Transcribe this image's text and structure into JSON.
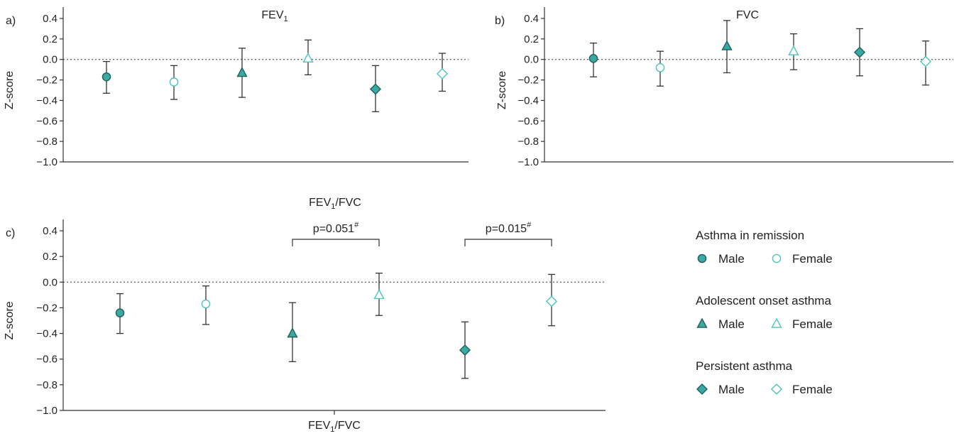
{
  "colors": {
    "male_fill": "#3aa8a3",
    "female_stroke": "#4cc3bd",
    "male_stroke": "#1f5f5c"
  },
  "legend": {
    "groups": [
      {
        "title": "Asthma in remission",
        "marker": "circle",
        "male": "Male",
        "female": "Female"
      },
      {
        "title": "Adolescent onset asthma",
        "marker": "triangle",
        "male": "Male",
        "female": "Female"
      },
      {
        "title": "Persistent asthma",
        "marker": "diamond",
        "male": "Male",
        "female": "Female"
      }
    ]
  },
  "chart_data": [
    {
      "type": "scatter",
      "panel": "a)",
      "title": "FEV",
      "title_sub": "1",
      "ylabel": "Z-score",
      "ylim": [
        -1.0,
        0.4
      ],
      "yticks": [
        "0.4",
        "0.2",
        "0.0",
        "−0.2",
        "−0.4",
        "−0.6",
        "−0.8",
        "−1.0"
      ],
      "reference_line": 0.0,
      "points": [
        {
          "group": "Asthma in remission",
          "sex": "Male",
          "marker": "circle",
          "y": -0.17,
          "low": -0.33,
          "high": -0.02
        },
        {
          "group": "Asthma in remission",
          "sex": "Female",
          "marker": "circle",
          "y": -0.22,
          "low": -0.39,
          "high": -0.06
        },
        {
          "group": "Adolescent onset asthma",
          "sex": "Male",
          "marker": "triangle",
          "y": -0.13,
          "low": -0.37,
          "high": 0.11
        },
        {
          "group": "Adolescent onset asthma",
          "sex": "Female",
          "marker": "triangle",
          "y": 0.01,
          "low": -0.15,
          "high": 0.19
        },
        {
          "group": "Persistent asthma",
          "sex": "Male",
          "marker": "diamond",
          "y": -0.29,
          "low": -0.51,
          "high": -0.06
        },
        {
          "group": "Persistent asthma",
          "sex": "Female",
          "marker": "diamond",
          "y": -0.14,
          "low": -0.31,
          "high": 0.06
        }
      ]
    },
    {
      "type": "scatter",
      "panel": "b)",
      "title": "FVC",
      "title_sub": "",
      "ylabel": "Z-score",
      "ylim": [
        -1.0,
        0.4
      ],
      "yticks": [
        "0.4",
        "0.2",
        "0.0",
        "−0.2",
        "−0.4",
        "−0.6",
        "−0.8",
        "−1.0"
      ],
      "reference_line": 0.0,
      "points": [
        {
          "group": "Asthma in remission",
          "sex": "Male",
          "marker": "circle",
          "y": 0.01,
          "low": -0.17,
          "high": 0.16
        },
        {
          "group": "Asthma in remission",
          "sex": "Female",
          "marker": "circle",
          "y": -0.08,
          "low": -0.26,
          "high": 0.08
        },
        {
          "group": "Adolescent onset asthma",
          "sex": "Male",
          "marker": "triangle",
          "y": 0.13,
          "low": -0.13,
          "high": 0.38
        },
        {
          "group": "Adolescent onset asthma",
          "sex": "Female",
          "marker": "triangle",
          "y": 0.08,
          "low": -0.1,
          "high": 0.25
        },
        {
          "group": "Persistent asthma",
          "sex": "Male",
          "marker": "diamond",
          "y": 0.07,
          "low": -0.16,
          "high": 0.3
        },
        {
          "group": "Persistent asthma",
          "sex": "Female",
          "marker": "diamond",
          "y": -0.02,
          "low": -0.25,
          "high": 0.18
        }
      ]
    },
    {
      "type": "scatter",
      "panel": "c)",
      "title": "FEV",
      "title_sub": "1",
      "title_rest": "/FVC",
      "ylabel": "Z-score",
      "xlabel": "FEV",
      "xlabel_sub": "1",
      "xlabel_rest": "/FVC",
      "ylim": [
        -1.0,
        0.4
      ],
      "yticks": [
        "0.4",
        "0.2",
        "0.0",
        "−0.2",
        "−0.4",
        "−0.6",
        "−0.8",
        "−1.0"
      ],
      "reference_line": 0.0,
      "points": [
        {
          "group": "Asthma in remission",
          "sex": "Male",
          "marker": "circle",
          "y": -0.24,
          "low": -0.4,
          "high": -0.09
        },
        {
          "group": "Asthma in remission",
          "sex": "Female",
          "marker": "circle",
          "y": -0.17,
          "low": -0.33,
          "high": -0.03
        },
        {
          "group": "Adolescent onset asthma",
          "sex": "Male",
          "marker": "triangle",
          "y": -0.4,
          "low": -0.62,
          "high": -0.16
        },
        {
          "group": "Adolescent onset asthma",
          "sex": "Female",
          "marker": "triangle",
          "y": -0.1,
          "low": -0.26,
          "high": 0.07
        },
        {
          "group": "Persistent asthma",
          "sex": "Male",
          "marker": "diamond",
          "y": -0.53,
          "low": -0.75,
          "high": -0.31
        },
        {
          "group": "Persistent asthma",
          "sex": "Female",
          "marker": "diamond",
          "y": -0.15,
          "low": -0.34,
          "high": 0.06
        }
      ],
      "annotations": [
        {
          "text": "p=0.051",
          "sup": "#",
          "between": [
            2,
            3
          ]
        },
        {
          "text": "p=0.015",
          "sup": "#",
          "between": [
            4,
            5
          ]
        }
      ]
    }
  ]
}
